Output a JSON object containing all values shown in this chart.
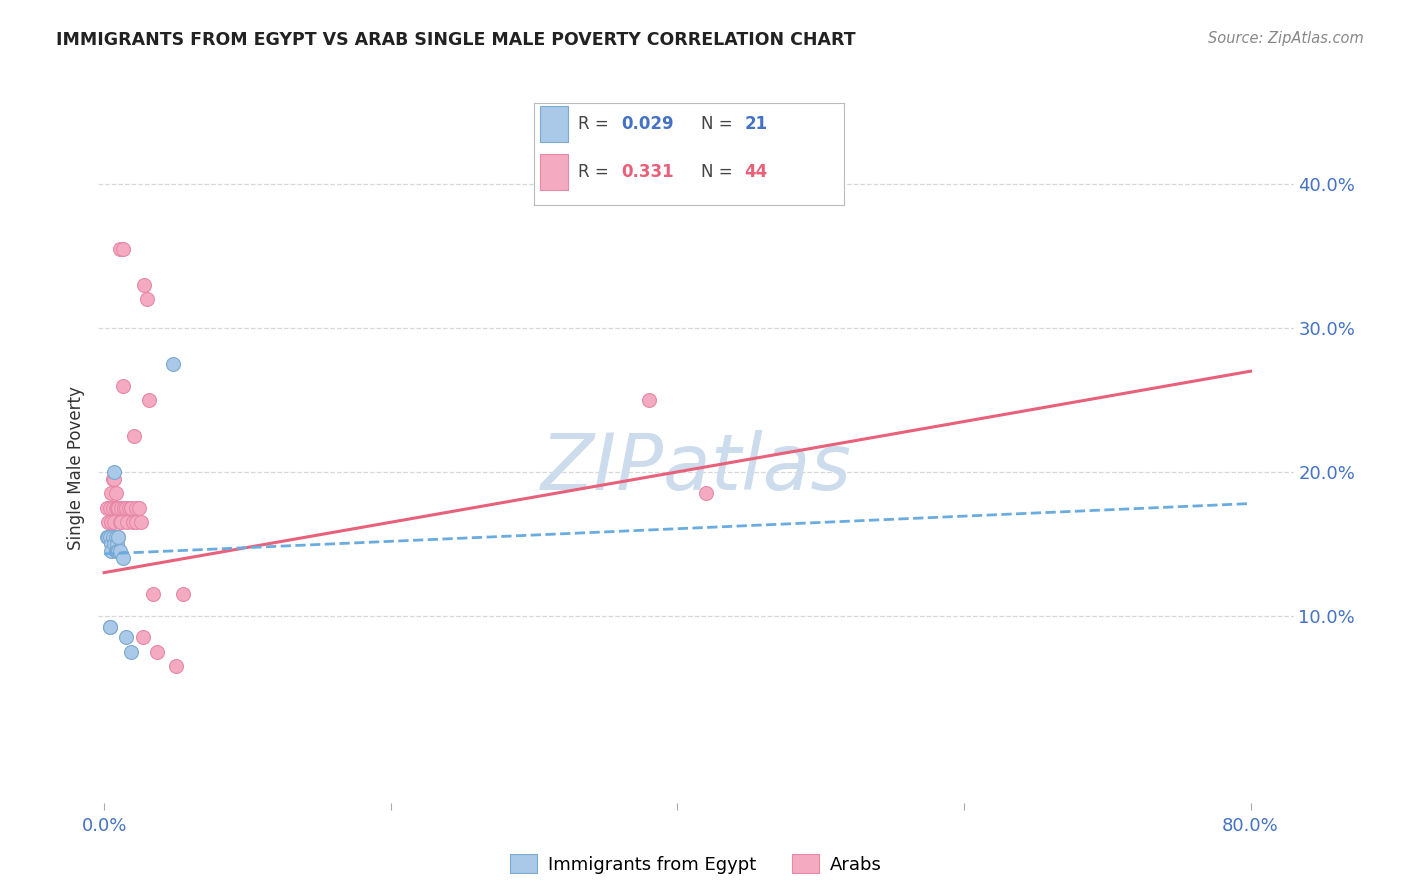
{
  "title": "IMMIGRANTS FROM EGYPT VS ARAB SINGLE MALE POVERTY CORRELATION CHART",
  "source": "Source: ZipAtlas.com",
  "ylabel": "Single Male Poverty",
  "yticks_right": [
    "40.0%",
    "30.0%",
    "20.0%",
    "10.0%"
  ],
  "ytick_vals": [
    0.4,
    0.3,
    0.2,
    0.1
  ],
  "xmin": -0.004,
  "xmax": 0.83,
  "ymin": -0.03,
  "ymax": 0.435,
  "blue_scatter_x": [
    0.002,
    0.003,
    0.004,
    0.004,
    0.004,
    0.005,
    0.005,
    0.006,
    0.007,
    0.007,
    0.008,
    0.008,
    0.009,
    0.009,
    0.01,
    0.01,
    0.011,
    0.013,
    0.015,
    0.019,
    0.048
  ],
  "blue_scatter_y": [
    0.155,
    0.155,
    0.092,
    0.092,
    0.155,
    0.15,
    0.145,
    0.155,
    0.15,
    0.2,
    0.155,
    0.145,
    0.15,
    0.145,
    0.155,
    0.145,
    0.145,
    0.14,
    0.085,
    0.075,
    0.275
  ],
  "pink_scatter_x": [
    0.002,
    0.003,
    0.004,
    0.005,
    0.005,
    0.005,
    0.006,
    0.006,
    0.007,
    0.007,
    0.008,
    0.008,
    0.009,
    0.009,
    0.01,
    0.01,
    0.011,
    0.011,
    0.012,
    0.012,
    0.013,
    0.013,
    0.014,
    0.014,
    0.015,
    0.016,
    0.017,
    0.019,
    0.02,
    0.021,
    0.022,
    0.022,
    0.024,
    0.026,
    0.027,
    0.028,
    0.03,
    0.031,
    0.034,
    0.037,
    0.05,
    0.055,
    0.38,
    0.42
  ],
  "pink_scatter_y": [
    0.175,
    0.165,
    0.175,
    0.165,
    0.185,
    0.155,
    0.175,
    0.195,
    0.165,
    0.195,
    0.175,
    0.185,
    0.155,
    0.175,
    0.175,
    0.155,
    0.165,
    0.355,
    0.165,
    0.175,
    0.26,
    0.355,
    0.175,
    0.175,
    0.175,
    0.165,
    0.175,
    0.175,
    0.165,
    0.225,
    0.175,
    0.165,
    0.175,
    0.165,
    0.085,
    0.33,
    0.32,
    0.25,
    0.115,
    0.075,
    0.065,
    0.115,
    0.25,
    0.185
  ],
  "blue_line_x": [
    0.0,
    0.8
  ],
  "blue_line_y": [
    0.143,
    0.178
  ],
  "pink_line_x": [
    0.0,
    0.8
  ],
  "pink_line_y": [
    0.13,
    0.27
  ],
  "scatter_size": 100,
  "blue_color": "#aac8e8",
  "pink_color": "#f4aac0",
  "blue_edge_color": "#7aaad0",
  "pink_edge_color": "#e888a8",
  "blue_line_color": "#6aace0",
  "pink_line_color": "#e8607a",
  "r_blue": "0.029",
  "n_blue": "21",
  "r_pink": "0.331",
  "n_pink": "44",
  "r_blue_color": "#4472C4",
  "n_blue_color": "#4472C4",
  "r_pink_color": "#e8607a",
  "n_pink_color": "#e8607a",
  "legend_label_blue": "Immigrants from Egypt",
  "legend_label_pink": "Arabs",
  "watermark": "ZIPatlas",
  "watermark_color": "#ccdcec",
  "background_color": "#ffffff",
  "grid_color": "#d8d8d8",
  "title_color": "#222222",
  "source_color": "#888888",
  "axis_label_color": "#333333",
  "tick_label_color": "#4472C4"
}
